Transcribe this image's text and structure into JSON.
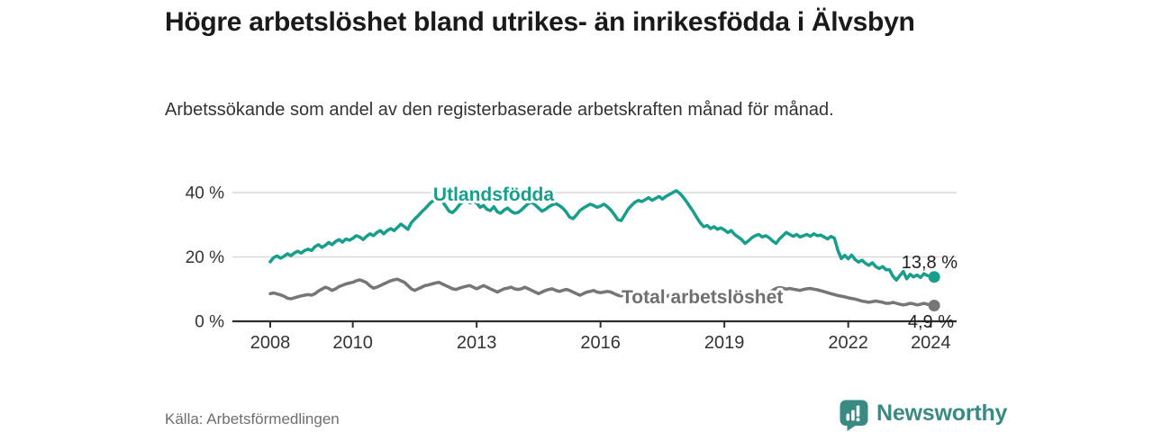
{
  "header": {
    "title": "Högre arbetslöshet bland utrikes- än inrikesfödda i Älvsbyn",
    "subtitle": "Arbetssökande som andel av den registerbaserade arbetskraften månad för månad."
  },
  "footer": {
    "source": "Källa: Arbetsförmedlingen",
    "brand_name": "Newsworthy",
    "brand_icon": "bar-chart-speech-bubble-icon",
    "brand_color": "#3a8a84"
  },
  "colors": {
    "foreign_born_line": "#189e8c",
    "total_line": "#767676",
    "total_label": "#6f6f6f",
    "axis_line": "#2e2e2e",
    "axis_text": "#333333",
    "gridline": "#d9d9d9",
    "end_value_text": "#1f1f1f"
  },
  "chart_data": {
    "type": "line",
    "title": "Högre arbetslöshet bland utrikes- än inrikesfödda i Älvsbyn",
    "xlabel": "",
    "ylabel": "",
    "x_interval": "monthly",
    "x_start_year": 2008,
    "x_end": "2024 (February)",
    "xlim": [
      2007.1,
      2024.6
    ],
    "ylim": [
      0,
      44
    ],
    "grid": "horizontal",
    "legend_position": "inline-labels",
    "y_ticks": [
      {
        "value": 0,
        "label": "0 %"
      },
      {
        "value": 20,
        "label": "20 %"
      },
      {
        "value": 40,
        "label": "40 %"
      }
    ],
    "x_ticks": [
      {
        "value": 2008,
        "label": "2008"
      },
      {
        "value": 2010,
        "label": "2010"
      },
      {
        "value": 2013,
        "label": "2013"
      },
      {
        "value": 2016,
        "label": "2016"
      },
      {
        "value": 2019,
        "label": "2019"
      },
      {
        "value": 2022,
        "label": "2022"
      },
      {
        "value": 2024,
        "label": "2024"
      }
    ],
    "series": [
      {
        "name": "Utlandsfödda",
        "color": "#189e8c",
        "end_value": 13.8,
        "end_value_label": "13,8 %",
        "values": [
          18.5,
          19.8,
          20.3,
          19.6,
          20.2,
          21.0,
          20.4,
          21.2,
          21.8,
          21.2,
          22.0,
          22.4,
          22.0,
          23.2,
          23.8,
          23.0,
          23.6,
          24.5,
          23.8,
          24.8,
          25.4,
          24.6,
          25.6,
          25.2,
          25.8,
          26.6,
          26.2,
          25.4,
          26.4,
          27.2,
          26.6,
          27.6,
          28.2,
          27.2,
          28.2,
          28.8,
          28.2,
          29.2,
          30.2,
          29.4,
          28.6,
          30.6,
          31.8,
          32.8,
          34.0,
          35.0,
          36.2,
          37.2,
          37.8,
          38.6,
          37.2,
          35.8,
          34.2,
          33.8,
          34.8,
          36.2,
          37.2,
          37.8,
          36.8,
          37.2,
          36.8,
          35.4,
          36.0,
          34.8,
          34.4,
          35.6,
          34.0,
          33.6,
          34.6,
          35.2,
          34.2,
          33.6,
          33.8,
          34.6,
          35.6,
          36.6,
          37.0,
          36.2,
          35.2,
          34.2,
          34.8,
          35.6,
          36.2,
          36.6,
          36.0,
          35.2,
          34.0,
          32.4,
          31.9,
          33.0,
          34.4,
          35.2,
          35.8,
          36.4,
          36.0,
          35.4,
          35.8,
          36.4,
          35.6,
          34.6,
          33.2,
          31.6,
          31.3,
          33.0,
          34.8,
          36.0,
          37.0,
          37.6,
          37.2,
          37.8,
          38.4,
          37.6,
          38.2,
          38.8,
          38.0,
          38.8,
          39.4,
          40.0,
          40.6,
          39.8,
          38.6,
          37.2,
          35.6,
          34.0,
          32.2,
          30.6,
          29.4,
          29.8,
          28.8,
          29.4,
          28.6,
          29.0,
          28.4,
          27.6,
          28.2,
          27.0,
          26.2,
          25.4,
          24.2,
          25.0,
          26.0,
          26.6,
          27.0,
          26.2,
          26.6,
          26.0,
          25.0,
          24.2,
          25.6,
          26.6,
          27.6,
          27.0,
          26.4,
          27.0,
          26.2,
          26.6,
          27.0,
          26.4,
          27.2,
          26.6,
          26.8,
          26.2,
          25.6,
          26.4,
          25.8,
          22.0,
          19.5,
          20.5,
          19.4,
          20.6,
          19.2,
          18.4,
          19.0,
          18.0,
          17.4,
          18.2,
          17.0,
          16.4,
          17.0,
          16.0,
          16.0,
          14.0,
          12.8,
          14.2,
          15.5,
          13.2,
          14.6,
          13.8,
          14.4,
          13.6,
          14.8,
          14.2,
          14.0,
          13.8
        ]
      },
      {
        "name": "Total arbetslöshet",
        "color": "#767676",
        "end_value": 4.9,
        "end_value_label": "4,9 %",
        "values": [
          8.6,
          8.8,
          8.5,
          8.2,
          7.8,
          7.2,
          7.0,
          7.3,
          7.6,
          7.9,
          8.1,
          8.3,
          8.1,
          8.6,
          9.4,
          10.0,
          10.6,
          10.2,
          9.6,
          10.1,
          10.8,
          11.2,
          11.6,
          11.9,
          12.1,
          12.6,
          12.9,
          12.5,
          12.0,
          11.0,
          10.3,
          10.6,
          11.1,
          11.6,
          12.1,
          12.6,
          12.9,
          13.1,
          12.6,
          12.1,
          11.1,
          10.1,
          9.6,
          10.1,
          10.6,
          11.1,
          11.3,
          11.6,
          11.9,
          12.1,
          11.6,
          11.1,
          10.6,
          10.1,
          9.9,
          10.3,
          10.6,
          10.9,
          11.1,
          10.6,
          10.1,
          10.6,
          11.1,
          10.6,
          10.1,
          9.6,
          9.1,
          9.6,
          10.1,
          10.3,
          10.6,
          10.1,
          9.9,
          10.1,
          10.6,
          10.1,
          9.6,
          9.1,
          8.6,
          9.1,
          9.6,
          9.9,
          10.1,
          9.6,
          9.3,
          9.6,
          9.9,
          9.6,
          9.1,
          8.6,
          8.1,
          8.6,
          9.1,
          9.3,
          9.6,
          9.1,
          8.9,
          9.1,
          9.3,
          9.1,
          8.6,
          8.1,
          7.9,
          8.3,
          8.6,
          8.9,
          9.1,
          8.6,
          8.3,
          8.6,
          8.9,
          8.6,
          8.1,
          7.6,
          7.3,
          7.6,
          8.1,
          8.3,
          8.6,
          8.1,
          7.9,
          8.1,
          8.3,
          8.1,
          7.6,
          7.1,
          6.9,
          7.1,
          7.6,
          7.9,
          8.1,
          7.9,
          7.6,
          7.9,
          8.1,
          7.9,
          7.6,
          7.3,
          7.1,
          7.3,
          7.6,
          7.9,
          8.1,
          8.3,
          8.6,
          8.9,
          9.6,
          10.2,
          10.5,
          10.3,
          10.0,
          10.2,
          10.0,
          9.8,
          9.6,
          9.9,
          10.1,
          10.2,
          10.0,
          9.8,
          9.5,
          9.2,
          8.9,
          8.6,
          8.3,
          8.0,
          7.8,
          7.6,
          7.3,
          7.1,
          6.9,
          6.6,
          6.3,
          6.1,
          5.9,
          6.1,
          6.3,
          6.1,
          5.9,
          5.6,
          5.6,
          5.9,
          5.6,
          5.3,
          5.1,
          5.3,
          5.6,
          5.4,
          5.1,
          5.3,
          5.6,
          5.3,
          5.1,
          4.9
        ]
      }
    ]
  }
}
